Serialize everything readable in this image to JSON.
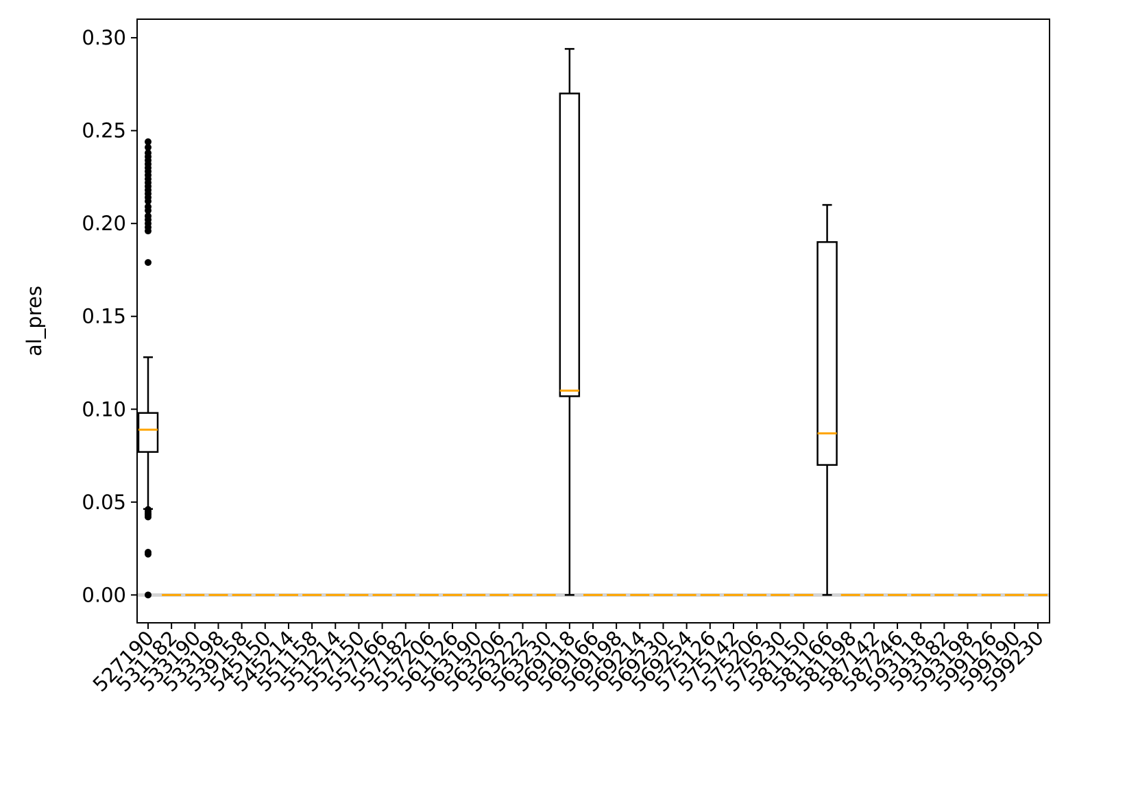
{
  "chart_data": {
    "type": "box",
    "title": "",
    "xlabel": "",
    "ylabel": "al_pres",
    "ylim": [
      -0.015,
      0.31
    ],
    "yticks": [
      0.0,
      0.05,
      0.1,
      0.15,
      0.2,
      0.25,
      0.3
    ],
    "ytick_labels": [
      "0.00",
      "0.05",
      "0.10",
      "0.15",
      "0.20",
      "0.25",
      "0.30"
    ],
    "grid": false,
    "colors": {
      "box": "#000000",
      "median": "#ffa500",
      "zero_line": "#d3d3d3"
    },
    "categories": [
      "527190",
      "531182",
      "533190",
      "533198",
      "539158",
      "545150",
      "545214",
      "551158",
      "551214",
      "557150",
      "557166",
      "557182",
      "557206",
      "561126",
      "563190",
      "563206",
      "563222",
      "563230",
      "569118",
      "569166",
      "569198",
      "569214",
      "569230",
      "569254",
      "575126",
      "575142",
      "575206",
      "575230",
      "581150",
      "581166",
      "581198",
      "587142",
      "587246",
      "593118",
      "593182",
      "593198",
      "599126",
      "599190",
      "599230"
    ],
    "boxes": [
      {
        "category": "527190",
        "whislo": 0.0463,
        "q1": 0.077,
        "median": 0.089,
        "q3": 0.098,
        "whishi": 0.128,
        "fliers": [
          0.0,
          0.022,
          0.023,
          0.042,
          0.043,
          0.044,
          0.045,
          0.046,
          0.179,
          0.196,
          0.198,
          0.2,
          0.202,
          0.204,
          0.207,
          0.209,
          0.212,
          0.214,
          0.216,
          0.218,
          0.22,
          0.222,
          0.224,
          0.226,
          0.228,
          0.23,
          0.232,
          0.234,
          0.236,
          0.238,
          0.241,
          0.244
        ]
      },
      {
        "category": "531182",
        "whislo": 0,
        "q1": 0,
        "median": 0,
        "q3": 0,
        "whishi": 0,
        "fliers": []
      },
      {
        "category": "533190",
        "whislo": 0,
        "q1": 0,
        "median": 0,
        "q3": 0,
        "whishi": 0,
        "fliers": []
      },
      {
        "category": "533198",
        "whislo": 0,
        "q1": 0,
        "median": 0,
        "q3": 0,
        "whishi": 0,
        "fliers": []
      },
      {
        "category": "539158",
        "whislo": 0,
        "q1": 0,
        "median": 0,
        "q3": 0,
        "whishi": 0,
        "fliers": []
      },
      {
        "category": "545150",
        "whislo": 0,
        "q1": 0,
        "median": 0,
        "q3": 0,
        "whishi": 0,
        "fliers": []
      },
      {
        "category": "545214",
        "whislo": 0,
        "q1": 0,
        "median": 0,
        "q3": 0,
        "whishi": 0,
        "fliers": []
      },
      {
        "category": "551158",
        "whislo": 0,
        "q1": 0,
        "median": 0,
        "q3": 0,
        "whishi": 0,
        "fliers": []
      },
      {
        "category": "551214",
        "whislo": 0,
        "q1": 0,
        "median": 0,
        "q3": 0,
        "whishi": 0,
        "fliers": []
      },
      {
        "category": "557150",
        "whislo": 0,
        "q1": 0,
        "median": 0,
        "q3": 0,
        "whishi": 0,
        "fliers": []
      },
      {
        "category": "557166",
        "whislo": 0,
        "q1": 0,
        "median": 0,
        "q3": 0,
        "whishi": 0,
        "fliers": []
      },
      {
        "category": "557182",
        "whislo": 0,
        "q1": 0,
        "median": 0,
        "q3": 0,
        "whishi": 0,
        "fliers": []
      },
      {
        "category": "557206",
        "whislo": 0,
        "q1": 0,
        "median": 0,
        "q3": 0,
        "whishi": 0,
        "fliers": []
      },
      {
        "category": "561126",
        "whislo": 0,
        "q1": 0,
        "median": 0,
        "q3": 0,
        "whishi": 0,
        "fliers": []
      },
      {
        "category": "563190",
        "whislo": 0,
        "q1": 0,
        "median": 0,
        "q3": 0,
        "whishi": 0,
        "fliers": []
      },
      {
        "category": "563206",
        "whislo": 0,
        "q1": 0,
        "median": 0,
        "q3": 0,
        "whishi": 0,
        "fliers": []
      },
      {
        "category": "563222",
        "whislo": 0,
        "q1": 0,
        "median": 0,
        "q3": 0,
        "whishi": 0,
        "fliers": []
      },
      {
        "category": "563230",
        "whislo": 0,
        "q1": 0,
        "median": 0,
        "q3": 0,
        "whishi": 0,
        "fliers": []
      },
      {
        "category": "569118",
        "whislo": 0.0,
        "q1": 0.107,
        "median": 0.11,
        "q3": 0.27,
        "whishi": 0.294,
        "fliers": []
      },
      {
        "category": "569166",
        "whislo": 0,
        "q1": 0,
        "median": 0,
        "q3": 0,
        "whishi": 0,
        "fliers": []
      },
      {
        "category": "569198",
        "whislo": 0,
        "q1": 0,
        "median": 0,
        "q3": 0,
        "whishi": 0,
        "fliers": []
      },
      {
        "category": "569214",
        "whislo": 0,
        "q1": 0,
        "median": 0,
        "q3": 0,
        "whishi": 0,
        "fliers": []
      },
      {
        "category": "569230",
        "whislo": 0,
        "q1": 0,
        "median": 0,
        "q3": 0,
        "whishi": 0,
        "fliers": []
      },
      {
        "category": "569254",
        "whislo": 0,
        "q1": 0,
        "median": 0,
        "q3": 0,
        "whishi": 0,
        "fliers": []
      },
      {
        "category": "575126",
        "whislo": 0,
        "q1": 0,
        "median": 0,
        "q3": 0,
        "whishi": 0,
        "fliers": []
      },
      {
        "category": "575142",
        "whislo": 0,
        "q1": 0,
        "median": 0,
        "q3": 0,
        "whishi": 0,
        "fliers": []
      },
      {
        "category": "575206",
        "whislo": 0,
        "q1": 0,
        "median": 0,
        "q3": 0,
        "whishi": 0,
        "fliers": []
      },
      {
        "category": "575230",
        "whislo": 0,
        "q1": 0,
        "median": 0,
        "q3": 0,
        "whishi": 0,
        "fliers": []
      },
      {
        "category": "581150",
        "whislo": 0,
        "q1": 0,
        "median": 0,
        "q3": 0,
        "whishi": 0,
        "fliers": []
      },
      {
        "category": "581166",
        "whislo": 0.0,
        "q1": 0.07,
        "median": 0.087,
        "q3": 0.19,
        "whishi": 0.21,
        "fliers": []
      },
      {
        "category": "581198",
        "whislo": 0,
        "q1": 0,
        "median": 0,
        "q3": 0,
        "whishi": 0,
        "fliers": []
      },
      {
        "category": "587142",
        "whislo": 0,
        "q1": 0,
        "median": 0,
        "q3": 0,
        "whishi": 0,
        "fliers": []
      },
      {
        "category": "587246",
        "whislo": 0,
        "q1": 0,
        "median": 0,
        "q3": 0,
        "whishi": 0,
        "fliers": []
      },
      {
        "category": "593118",
        "whislo": 0,
        "q1": 0,
        "median": 0,
        "q3": 0,
        "whishi": 0,
        "fliers": []
      },
      {
        "category": "593182",
        "whislo": 0,
        "q1": 0,
        "median": 0,
        "q3": 0,
        "whishi": 0,
        "fliers": []
      },
      {
        "category": "593198",
        "whislo": 0,
        "q1": 0,
        "median": 0,
        "q3": 0,
        "whishi": 0,
        "fliers": []
      },
      {
        "category": "599126",
        "whislo": 0,
        "q1": 0,
        "median": 0,
        "q3": 0,
        "whishi": 0,
        "fliers": []
      },
      {
        "category": "599190",
        "whislo": 0,
        "q1": 0,
        "median": 0,
        "q3": 0,
        "whishi": 0,
        "fliers": []
      },
      {
        "category": "599230",
        "whislo": 0,
        "q1": 0,
        "median": 0,
        "q3": 0,
        "whishi": 0,
        "fliers": []
      }
    ]
  }
}
